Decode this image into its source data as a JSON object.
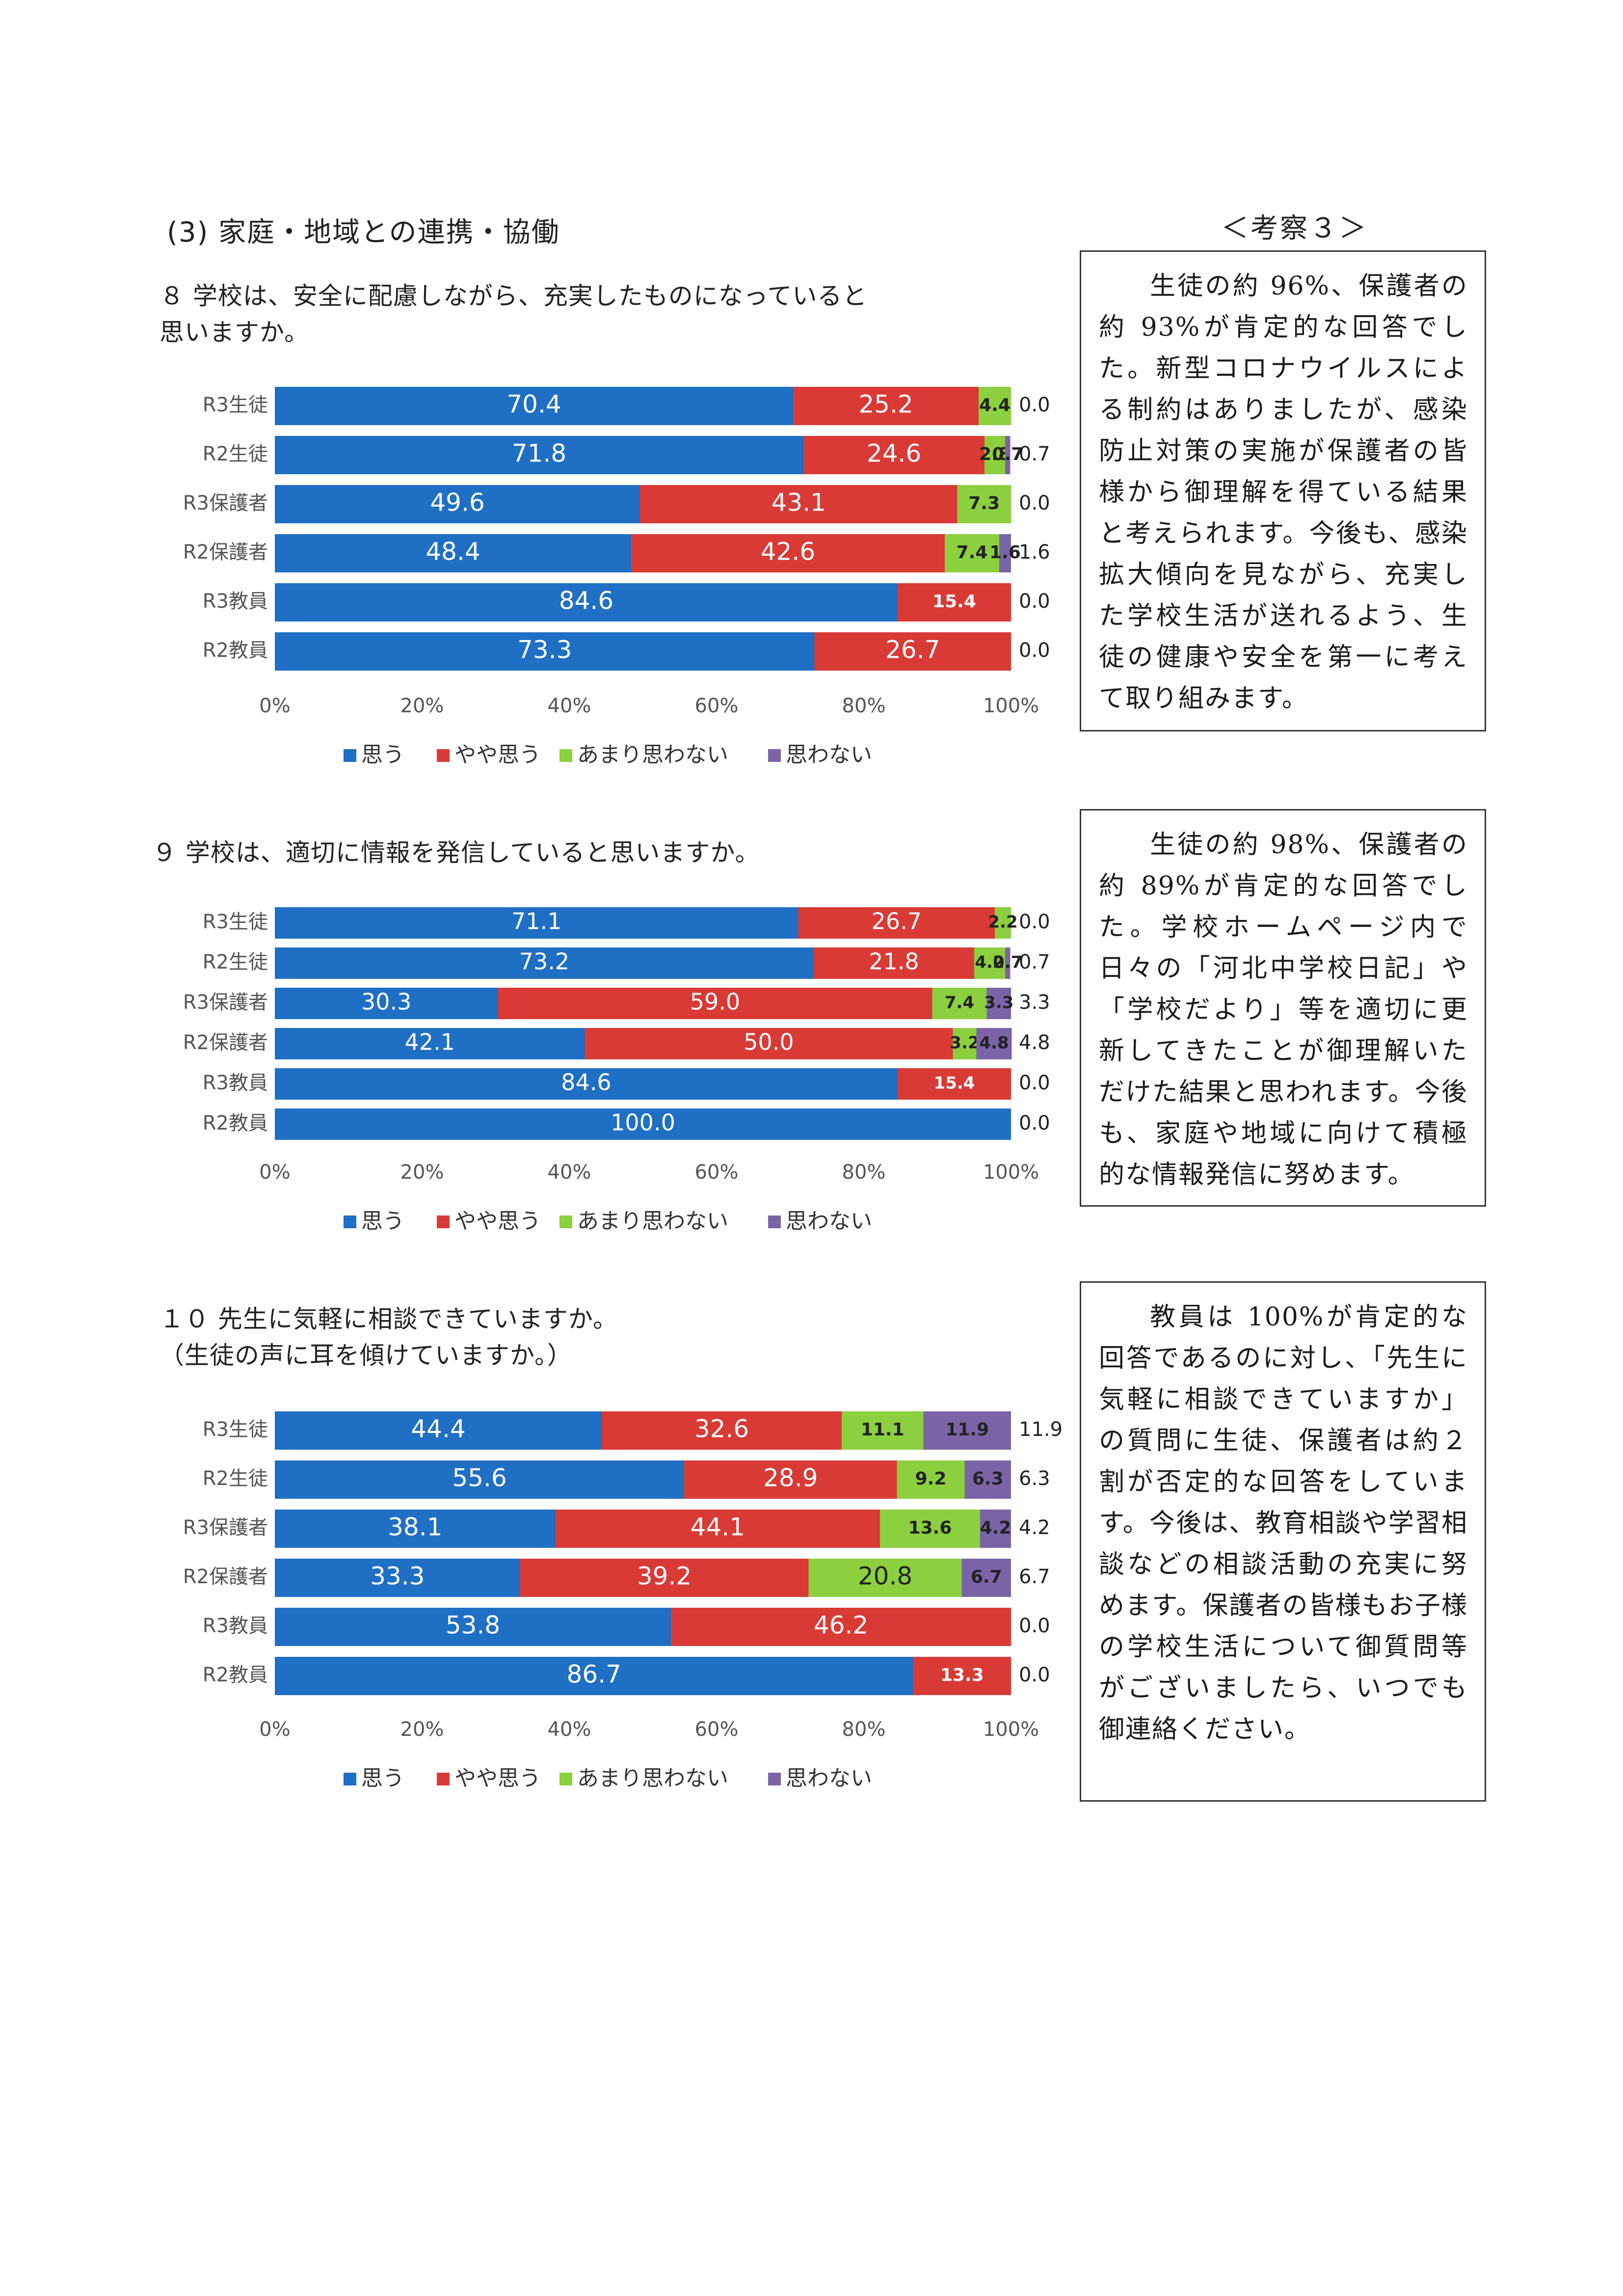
{
  "section_title": "(3) 家庭・地域との連携・協働",
  "kousatsu_title": "＜考察３＞",
  "colors": {
    "omou": "#1f6fc4",
    "yaya": "#d93a35",
    "amari": "#8ccf3f",
    "omowanai": "#7a64a8"
  },
  "legend": [
    "思う",
    "やや思う",
    "あまり思わない",
    "思わない"
  ],
  "axis_ticks": [
    "0%",
    "20%",
    "40%",
    "60%",
    "80%",
    "100%"
  ],
  "questions": [
    {
      "text": "８ 学校は、安全に配慮しながら、充実したものになっていると\n思いますか。"
    },
    {
      "text": "９ 学校は、適切に情報を発信していると思いますか。"
    },
    {
      "text": "１０ 先生に気軽に相談できていますか。\n（生徒の声に耳を傾けていますか。）"
    }
  ],
  "comments": [
    "生徒の約 96%、保護者の約 93%が肯定的な回答でした。新型コロナウイルスによる制約はありましたが、感染防止対策の実施が保護者の皆様から御理解を得ている結果と考えられます。今後も、感染拡大傾向を見ながら、充実した学校生活が送れるよう、生徒の健康や安全を第一に考えて取り組みます。",
    "生徒の約 98%、保護者の約 89%が肯定的な回答でした。学校ホームページ内で日々の「河北中学校日記」や「学校だより」等を適切に更新してきたことが御理解いただけた結果と思われます。今後も、家庭や地域に向けて積極的な情報発信に努めます。",
    "教員は 100%が肯定的な回答であるのに対し、「先生に気軽に相談できていますか」の質問に生徒、保護者は約２割が否定的な回答をしています。今後は、教育相談や学習相談などの相談活動の充実に努めます。保護者の皆様もお子様の学校生活について御質問等がございましたら、いつでも御連絡ください。"
  ],
  "chart_data": [
    {
      "type": "bar",
      "stacked": true,
      "orientation": "horizontal",
      "categories": [
        "R3生徒",
        "R2生徒",
        "R3保護者",
        "R2保護者",
        "R3教員",
        "R2教員"
      ],
      "xlim": [
        0,
        100
      ],
      "legend_position": "bottom",
      "series": [
        {
          "name": "思う",
          "values": [
            70.4,
            71.8,
            49.6,
            48.4,
            84.6,
            73.3
          ]
        },
        {
          "name": "やや思う",
          "values": [
            25.2,
            24.6,
            43.1,
            42.6,
            15.4,
            26.7
          ]
        },
        {
          "name": "あまり思わない",
          "values": [
            4.4,
            2.8,
            7.3,
            7.4,
            0,
            0
          ]
        },
        {
          "name": "思わない",
          "values": [
            0.0,
            0.7,
            0.0,
            1.6,
            0.0,
            0.0
          ]
        }
      ]
    },
    {
      "type": "bar",
      "stacked": true,
      "orientation": "horizontal",
      "categories": [
        "R3生徒",
        "R2生徒",
        "R3保護者",
        "R2保護者",
        "R3教員",
        "R2教員"
      ],
      "xlim": [
        0,
        100
      ],
      "legend_position": "bottom",
      "series": [
        {
          "name": "思う",
          "values": [
            71.1,
            73.2,
            30.3,
            42.1,
            84.6,
            100.0
          ]
        },
        {
          "name": "やや思う",
          "values": [
            26.7,
            21.8,
            59.0,
            50.0,
            15.4,
            0
          ]
        },
        {
          "name": "あまり思わない",
          "values": [
            2.2,
            4.2,
            7.4,
            3.2,
            0,
            0
          ]
        },
        {
          "name": "思わない",
          "values": [
            0.0,
            0.7,
            3.3,
            4.8,
            0.0,
            0.0
          ]
        }
      ]
    },
    {
      "type": "bar",
      "stacked": true,
      "orientation": "horizontal",
      "categories": [
        "R3生徒",
        "R2生徒",
        "R3保護者",
        "R2保護者",
        "R3教員",
        "R2教員"
      ],
      "xlim": [
        0,
        100
      ],
      "legend_position": "bottom",
      "series": [
        {
          "name": "思う",
          "values": [
            44.4,
            55.6,
            38.1,
            33.3,
            53.8,
            86.7
          ]
        },
        {
          "name": "やや思う",
          "values": [
            32.6,
            28.9,
            44.1,
            39.2,
            46.2,
            13.3
          ]
        },
        {
          "name": "あまり思わない",
          "values": [
            11.1,
            9.2,
            13.6,
            20.8,
            0,
            0
          ]
        },
        {
          "name": "思わない",
          "values": [
            11.9,
            6.3,
            4.2,
            6.7,
            0.0,
            0.0
          ]
        }
      ]
    }
  ]
}
